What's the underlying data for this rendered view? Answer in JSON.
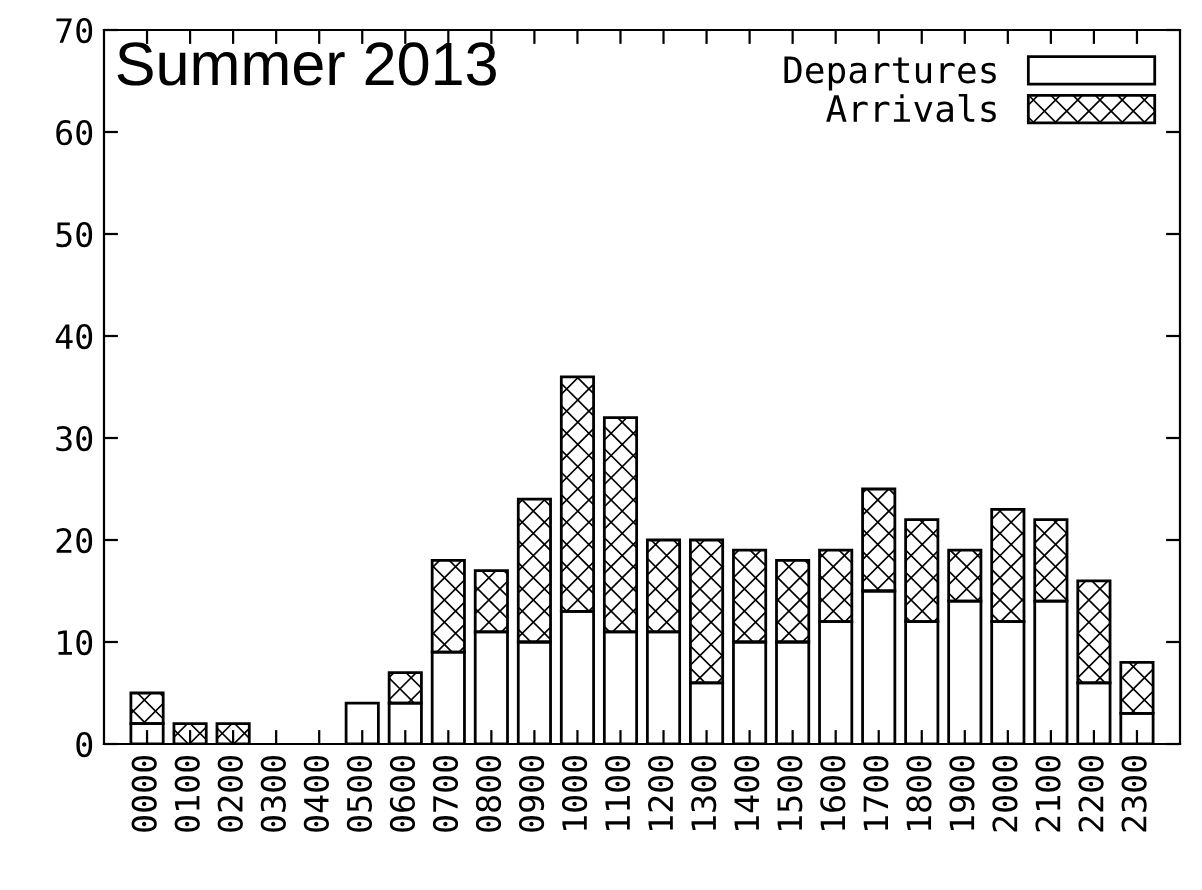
{
  "chart_data": {
    "type": "bar",
    "title": "Summer 2013",
    "stacked": true,
    "legend": "top right",
    "grid": false,
    "categories": [
      "0000",
      "0100",
      "0200",
      "0300",
      "0400",
      "0500",
      "0600",
      "0700",
      "0800",
      "0900",
      "1000",
      "1100",
      "1200",
      "1300",
      "1400",
      "1500",
      "1600",
      "1700",
      "1800",
      "1900",
      "2000",
      "2100",
      "2200",
      "2300"
    ],
    "series": [
      {
        "name": "Departures",
        "color": "#ffffff",
        "values": [
          2,
          0,
          0,
          0,
          0,
          4,
          4,
          9,
          11,
          10,
          13,
          11,
          11,
          6,
          10,
          10,
          12,
          15,
          12,
          14,
          12,
          14,
          6,
          3
        ]
      },
      {
        "name": "Arrivals",
        "color": "#000000",
        "values": [
          3,
          2,
          2,
          0,
          0,
          0,
          3,
          9,
          6,
          14,
          23,
          21,
          9,
          14,
          9,
          8,
          7,
          10,
          10,
          5,
          11,
          8,
          10,
          5
        ]
      }
    ],
    "ylim": [
      0,
      70
    ],
    "yticks": [
      0,
      10,
      20,
      30,
      40,
      50,
      60,
      70
    ]
  }
}
